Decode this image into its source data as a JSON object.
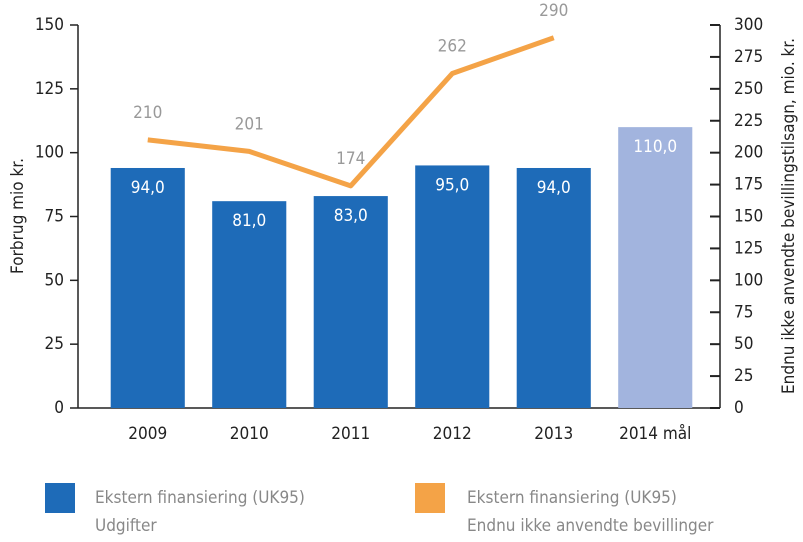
{
  "chart_data": {
    "type": "bar_line",
    "categories": [
      "2009",
      "2010",
      "2011",
      "2012",
      "2013",
      "2014 mål"
    ],
    "ylabel": "Forbrug mio kr.",
    "y2label": "Endnu ikke anvendte bevillingstilsagn, mio. kr.",
    "ylim": [
      0,
      150
    ],
    "yticks": [
      0,
      25,
      50,
      75,
      100,
      125,
      150
    ],
    "y2lim": [
      0,
      300
    ],
    "y2ticks": [
      0,
      25,
      50,
      75,
      100,
      125,
      150,
      175,
      200,
      225,
      250,
      275,
      300
    ],
    "series": [
      {
        "name": [
          "Ekstern finansiering (UK95)",
          "Udgifter"
        ],
        "type": "bar",
        "color": "#1e6bb8",
        "colors": [
          "#1e6bb8",
          "#1e6bb8",
          "#1e6bb8",
          "#1e6bb8",
          "#1e6bb8",
          "#a2b4de"
        ],
        "values": [
          94,
          81,
          83,
          95,
          94,
          110
        ],
        "value_labels": [
          "94,0",
          "81,0",
          "83,0",
          "95,0",
          "94,0",
          "110,0"
        ]
      },
      {
        "name": [
          "Ekstern finansiering (UK95)",
          "Endnu ikke anvendte bevillinger"
        ],
        "type": "line",
        "color": "#f4a347",
        "axis": "y2",
        "values": [
          210,
          201,
          174,
          262,
          290,
          null
        ]
      }
    ]
  }
}
